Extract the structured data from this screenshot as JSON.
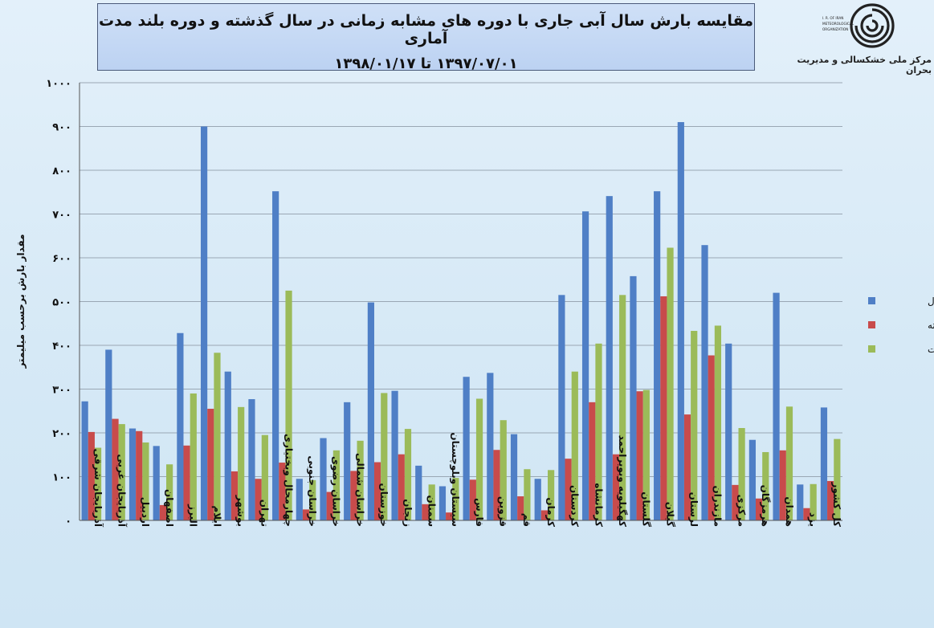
{
  "header": {
    "title_line1": "مقایسه بارش سال آبی جاری با دوره های مشابه زمانی در سال گذشته و دوره بلند مدت آماری",
    "title_line2": "۱۳۹۷/۰۷/۰۱ تا ۱۳۹۸/۰۱/۱۷",
    "org_name": "مرکز ملی خشکسالی و مدیریت بحران",
    "logo_text": "I. R. OF IRAN METEOROLOGICAL ORGANIZATION"
  },
  "colors": {
    "series": [
      "#4f7fc6",
      "#c84b4b",
      "#9bbb59"
    ]
  },
  "chart_data": {
    "type": "bar",
    "ylabel": "مقدار بارش برحسب میلیمتر",
    "ylim": [
      0,
      1000
    ],
    "yticks": [
      0,
      100,
      200,
      300,
      400,
      500,
      600,
      700,
      800,
      900,
      1000
    ],
    "ytick_labels": [
      "۰",
      "۱۰۰",
      "۲۰۰",
      "۳۰۰",
      "۴۰۰",
      "۵۰۰",
      "۶۰۰",
      "۷۰۰",
      "۸۰۰",
      "۹۰۰",
      "۱۰۰۰"
    ],
    "grid": true,
    "legend_position": "right",
    "categories": [
      "آذربایجان شرقی",
      "آذربایجان غربی",
      "اردبیل",
      "اصفهان",
      "البرز",
      "ایلام",
      "بوشهر",
      "تهران",
      "چهارمحال وبختیاری",
      "خراسان جنوبی",
      "خراسان رضوی",
      "خراسان شمالی",
      "خوزستان",
      "زنجان",
      "سمنان",
      "سیستان وبلوچستان",
      "فارس",
      "قزوین",
      "قم",
      "کرمان",
      "کردستان",
      "کرمانشاه",
      "کهگیلویه وبویراحمد",
      "گلستان",
      "گیلان",
      "لرستان",
      "مازندران",
      "مرکزی",
      "هرمزگان",
      "همدان",
      "یزد",
      "کل کشور"
    ],
    "series": [
      {
        "name": "امسال",
        "values": [
          272,
          390,
          210,
          170,
          428,
          900,
          340,
          277,
          752,
          95,
          188,
          270,
          498,
          296,
          125,
          78,
          328,
          337,
          197,
          95,
          515,
          706,
          741,
          558,
          752,
          910,
          629,
          404,
          184,
          520,
          82,
          258
        ]
      },
      {
        "name": "سال گذشته",
        "values": [
          202,
          232,
          204,
          35,
          171,
          255,
          112,
          95,
          132,
          25,
          65,
          113,
          133,
          151,
          37,
          18,
          93,
          161,
          55,
          23,
          141,
          270,
          151,
          295,
          512,
          242,
          377,
          81,
          50,
          160,
          28,
          90
        ]
      },
      {
        "name": "بلند مدت",
        "values": [
          166,
          220,
          178,
          128,
          290,
          383,
          259,
          195,
          525,
          92,
          160,
          182,
          291,
          209,
          82,
          97,
          278,
          229,
          117,
          115,
          340,
          404,
          515,
          298,
          623,
          433,
          445,
          211,
          156,
          260,
          83,
          186
        ]
      }
    ]
  }
}
